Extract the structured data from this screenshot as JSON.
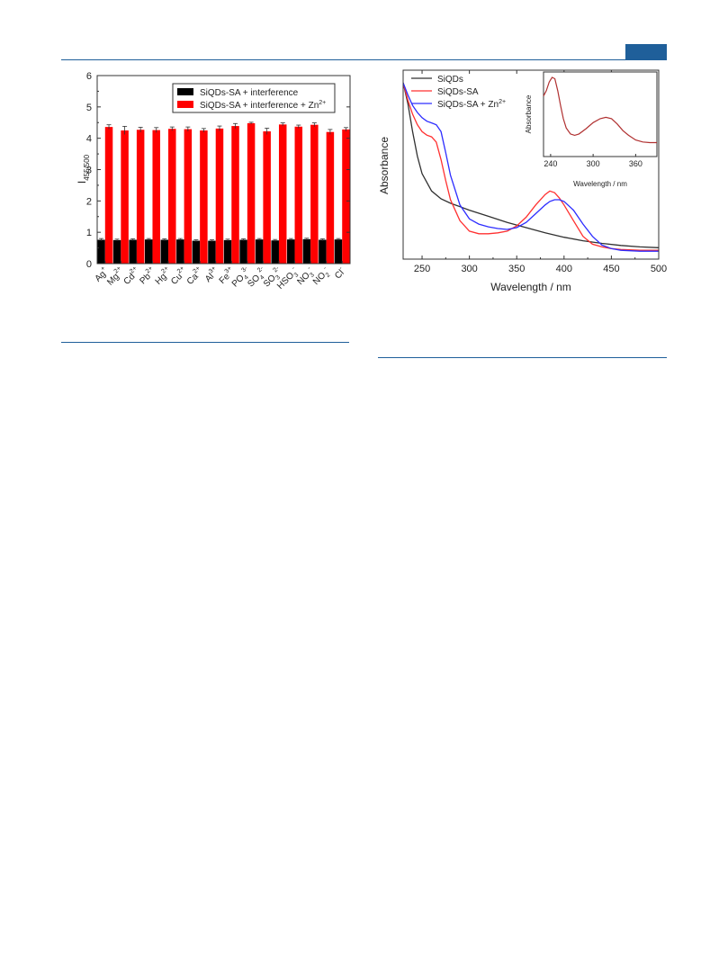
{
  "colors": {
    "header_rule": "#1f5f9a",
    "black_bar": "#000000",
    "red_bar": "#ff0000",
    "siqds": "#303030",
    "siqds_sa": "#ff3030",
    "siqds_sa_zn": "#2d2dff",
    "inset": "#b03030"
  },
  "chart_data": [
    {
      "type": "bar",
      "ylabel_main": "I",
      "ylabel_sub": "455/500",
      "ylim": [
        0,
        6
      ],
      "yticks": [
        "0",
        "1",
        "2",
        "3",
        "4",
        "5",
        "6"
      ],
      "legend_position": "top-right",
      "categories": [
        {
          "base": "Ag",
          "sup": "+",
          "sub": ""
        },
        {
          "base": "Mg",
          "sup": "2+",
          "sub": ""
        },
        {
          "base": "Cd",
          "sup": "2+",
          "sub": ""
        },
        {
          "base": "Pb",
          "sup": "2+",
          "sub": ""
        },
        {
          "base": "Hg",
          "sup": "2+",
          "sub": ""
        },
        {
          "base": "Cu",
          "sup": "2+",
          "sub": ""
        },
        {
          "base": "Ca",
          "sup": "2+",
          "sub": ""
        },
        {
          "base": "Al",
          "sup": "3+",
          "sub": ""
        },
        {
          "base": "Fe",
          "sup": "3+",
          "sub": ""
        },
        {
          "base": "PO",
          "sup": "3-",
          "sub": "4"
        },
        {
          "base": "SO",
          "sup": "2-",
          "sub": "4"
        },
        {
          "base": "SO",
          "sup": "2-",
          "sub": "3"
        },
        {
          "base": "HSO",
          "sup": "-",
          "sub": "3"
        },
        {
          "base": "NO",
          "sup": "-",
          "sub": "3"
        },
        {
          "base": "NO",
          "sup": "-",
          "sub": "2"
        },
        {
          "base": "Cl",
          "sup": "-",
          "sub": ""
        }
      ],
      "series": [
        {
          "name": "SiQDs-SA + interference",
          "values": [
            0.76,
            0.75,
            0.76,
            0.77,
            0.76,
            0.77,
            0.73,
            0.73,
            0.75,
            0.76,
            0.77,
            0.74,
            0.77,
            0.78,
            0.76,
            0.77
          ],
          "errors": [
            0.04,
            0.03,
            0.03,
            0.03,
            0.03,
            0.03,
            0.03,
            0.03,
            0.03,
            0.03,
            0.03,
            0.03,
            0.03,
            0.03,
            0.03,
            0.03
          ]
        },
        {
          "name": "SiQDs-SA + interference + Zn",
          "name_sup": "2+",
          "values": [
            4.36,
            4.25,
            4.27,
            4.26,
            4.3,
            4.29,
            4.25,
            4.31,
            4.39,
            4.48,
            4.22,
            4.44,
            4.37,
            4.43,
            4.2,
            4.28
          ],
          "errors": [
            0.07,
            0.13,
            0.08,
            0.08,
            0.06,
            0.07,
            0.06,
            0.08,
            0.08,
            0.03,
            0.1,
            0.05,
            0.05,
            0.06,
            0.08,
            0.06
          ]
        }
      ]
    },
    {
      "type": "line",
      "xlabel": "Wavelength / nm",
      "ylabel": "Absorbance",
      "xlim": [
        230,
        500
      ],
      "xticks": [
        "250",
        "300",
        "350",
        "400",
        "450",
        "500"
      ],
      "ylim": [
        0,
        1
      ],
      "legend_position": "top-left",
      "series": [
        {
          "name": "SiQDs",
          "x": [
            230,
            235,
            240,
            245,
            250,
            260,
            270,
            280,
            290,
            300,
            320,
            340,
            360,
            380,
            400,
            420,
            440,
            460,
            480,
            500
          ],
          "y": [
            1.0,
            0.88,
            0.72,
            0.58,
            0.48,
            0.38,
            0.335,
            0.31,
            0.29,
            0.27,
            0.235,
            0.2,
            0.17,
            0.14,
            0.115,
            0.095,
            0.08,
            0.068,
            0.06,
            0.055
          ]
        },
        {
          "name": "SiQDs-SA",
          "x": [
            230,
            235,
            240,
            245,
            250,
            255,
            260,
            265,
            270,
            275,
            280,
            290,
            300,
            310,
            320,
            330,
            340,
            350,
            360,
            370,
            380,
            385,
            390,
            395,
            400,
            410,
            420,
            430,
            440,
            450,
            460,
            480,
            500
          ],
          "y": [
            1.0,
            0.9,
            0.82,
            0.76,
            0.72,
            0.7,
            0.69,
            0.66,
            0.56,
            0.44,
            0.33,
            0.21,
            0.15,
            0.135,
            0.135,
            0.14,
            0.15,
            0.18,
            0.23,
            0.3,
            0.36,
            0.38,
            0.37,
            0.34,
            0.3,
            0.21,
            0.12,
            0.075,
            0.06,
            0.05,
            0.045,
            0.04,
            0.04
          ]
        },
        {
          "name": "SiQDs-SA + Zn",
          "name_sup": "2+",
          "x": [
            230,
            235,
            240,
            245,
            250,
            255,
            260,
            265,
            270,
            275,
            280,
            290,
            300,
            310,
            320,
            330,
            340,
            350,
            360,
            370,
            380,
            385,
            390,
            395,
            400,
            410,
            420,
            430,
            440,
            450,
            460,
            480,
            500
          ],
          "y": [
            1.0,
            0.93,
            0.87,
            0.83,
            0.8,
            0.78,
            0.77,
            0.76,
            0.72,
            0.6,
            0.47,
            0.3,
            0.22,
            0.19,
            0.175,
            0.165,
            0.16,
            0.17,
            0.2,
            0.25,
            0.3,
            0.32,
            0.33,
            0.33,
            0.32,
            0.27,
            0.19,
            0.12,
            0.07,
            0.05,
            0.04,
            0.035,
            0.035
          ]
        }
      ],
      "inset": {
        "xlabel": "Wavelength / nm",
        "ylabel": "Absorbance",
        "xlim": [
          230,
          390
        ],
        "xticks": [
          "240",
          "300",
          "360"
        ],
        "ylim": [
          0,
          1
        ],
        "series": [
          {
            "x": [
              230,
              234,
              238,
              242,
              246,
              250,
              254,
              258,
              262,
              268,
              274,
              280,
              290,
              300,
              310,
              318,
              326,
              334,
              342,
              350,
              360,
              370,
              380,
              390
            ],
            "y": [
              0.72,
              0.8,
              0.93,
              1.0,
              0.98,
              0.8,
              0.58,
              0.38,
              0.24,
              0.15,
              0.13,
              0.15,
              0.23,
              0.32,
              0.38,
              0.4,
              0.38,
              0.3,
              0.2,
              0.13,
              0.06,
              0.03,
              0.02,
              0.02
            ]
          }
        ]
      }
    }
  ]
}
